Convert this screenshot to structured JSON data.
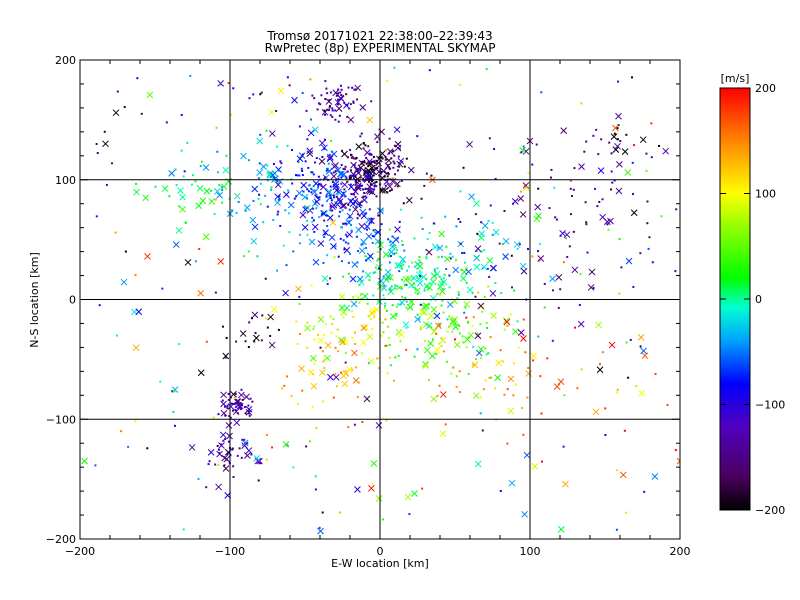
{
  "title_line1": "Tromsø 20171021 22:38:00–22:39:43",
  "title_line2": "RwPretec (8p) EXPERIMENTAL SKYMAP",
  "chart_data": {
    "type": "scatter",
    "xlabel": "E-W location [km]",
    "ylabel": "N-S location [km]",
    "xlim": [
      -200,
      200
    ],
    "ylim": [
      -200,
      200
    ],
    "x_ticks": [
      -200,
      -100,
      0,
      100,
      200
    ],
    "y_ticks": [
      -200,
      -100,
      0,
      100,
      200
    ],
    "grid": true,
    "grid_lines_x": [
      -100,
      0,
      100
    ],
    "grid_lines_y": [
      -100,
      0,
      100
    ],
    "colorbar": {
      "label": "[m/s]",
      "min": -200,
      "max": 200,
      "ticks": [
        -200,
        -100,
        0,
        100,
        200
      ],
      "colormap": "rainbow (black-purple-blue-cyan-green-yellow-red)"
    },
    "marker_types": [
      "dot",
      "cross"
    ],
    "point_clusters": [
      {
        "x": -27,
        "y": 165,
        "spread": 8,
        "count": 60,
        "velocity": -140
      },
      {
        "x": -5,
        "y": 108,
        "spread": 12,
        "count": 180,
        "velocity": -175
      },
      {
        "x": -45,
        "y": 100,
        "spread": 14,
        "count": 90,
        "velocity": -70
      },
      {
        "x": -20,
        "y": 95,
        "spread": 14,
        "count": 90,
        "velocity": -110
      },
      {
        "x": -75,
        "y": 85,
        "spread": 20,
        "count": 60,
        "velocity": -30
      },
      {
        "x": -120,
        "y": 90,
        "spread": 18,
        "count": 40,
        "velocity": 5
      },
      {
        "x": -30,
        "y": 65,
        "spread": 18,
        "count": 60,
        "velocity": -85
      },
      {
        "x": -10,
        "y": 45,
        "spread": 20,
        "count": 80,
        "velocity": -55
      },
      {
        "x": 15,
        "y": 18,
        "spread": 16,
        "count": 130,
        "velocity": 5
      },
      {
        "x": 50,
        "y": 35,
        "spread": 30,
        "count": 70,
        "velocity": -30
      },
      {
        "x": 40,
        "y": -20,
        "spread": 25,
        "count": 120,
        "velocity": 45
      },
      {
        "x": -20,
        "y": -20,
        "spread": 22,
        "count": 70,
        "velocity": 90
      },
      {
        "x": -30,
        "y": -60,
        "spread": 25,
        "count": 40,
        "velocity": 140
      },
      {
        "x": 70,
        "y": -60,
        "spread": 25,
        "count": 35,
        "velocity": 130
      },
      {
        "x": -95,
        "y": -90,
        "spread": 6,
        "count": 50,
        "velocity": -130
      },
      {
        "x": -100,
        "y": -130,
        "spread": 10,
        "count": 50,
        "velocity": -125
      },
      {
        "x": -85,
        "y": -30,
        "spread": 10,
        "count": 20,
        "velocity": -185
      },
      {
        "x": 100,
        "y": 50,
        "spread": 40,
        "count": 60,
        "velocity": -140
      },
      {
        "x": 140,
        "y": 110,
        "spread": 22,
        "count": 30,
        "velocity": -135
      },
      {
        "x": 150,
        "y": 60,
        "spread": 25,
        "count": 20,
        "velocity": -150
      },
      {
        "x": 130,
        "y": -60,
        "spread": 40,
        "count": 30,
        "velocity": 175
      },
      {
        "x": -50,
        "y": 140,
        "spread": 30,
        "count": 20,
        "velocity": -100
      },
      {
        "x": 160,
        "y": 135,
        "spread": 6,
        "count": 10,
        "velocity": -195
      }
    ],
    "sample_points": [
      {
        "x": -183,
        "y": 130,
        "v": -200,
        "marker": "cross"
      },
      {
        "x": -176,
        "y": 156,
        "v": -200,
        "marker": "cross"
      },
      {
        "x": -155,
        "y": 36,
        "v": 180,
        "marker": "cross"
      },
      {
        "x": -128,
        "y": 31,
        "v": -190,
        "marker": "cross"
      },
      {
        "x": 35,
        "y": 100,
        "v": 170,
        "marker": "cross"
      },
      {
        "x": 200,
        "y": -135,
        "v": 170,
        "marker": "cross"
      },
      {
        "x": 23,
        "y": -162,
        "v": 15,
        "marker": "cross"
      },
      {
        "x": 42,
        "y": -112,
        "v": 90,
        "marker": "cross"
      },
      {
        "x": -197,
        "y": -135,
        "v": 25,
        "marker": "cross"
      },
      {
        "x": 98,
        "y": -130,
        "v": -60,
        "marker": "cross"
      },
      {
        "x": 156,
        "y": 136,
        "v": -200,
        "marker": "cross"
      },
      {
        "x": 159,
        "y": 153,
        "v": -150,
        "marker": "cross"
      }
    ]
  }
}
